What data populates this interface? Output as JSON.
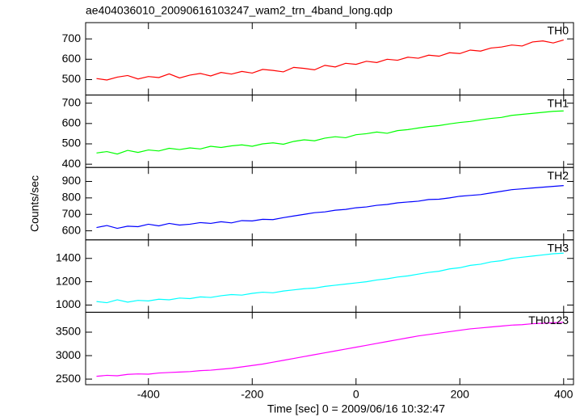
{
  "chart_data": {
    "type": "line",
    "title": "ae404036010_20090616103247_wam2_trn_4band_long.qdp",
    "xlabel": "Time [sec] 0 = 2009/06/16 10:32:47",
    "ylabel": "Counts/sec",
    "x": [
      -500,
      -480,
      -460,
      -440,
      -420,
      -400,
      -380,
      -360,
      -340,
      -320,
      -300,
      -280,
      -260,
      -240,
      -220,
      -200,
      -180,
      -160,
      -140,
      -120,
      -100,
      -80,
      -60,
      -40,
      -20,
      0,
      20,
      40,
      60,
      80,
      100,
      120,
      140,
      160,
      180,
      200,
      220,
      240,
      260,
      280,
      300,
      320,
      340,
      360,
      380,
      400
    ],
    "xlim": [
      -521,
      419
    ],
    "xticks": [
      -400,
      -200,
      0,
      200,
      400
    ],
    "series": [
      {
        "name": "TH0",
        "color": "#ff0000",
        "ylim": [
          424,
          780
        ],
        "yticks": [
          500,
          600,
          700
        ],
        "values": [
          505,
          498,
          512,
          520,
          503,
          515,
          510,
          528,
          508,
          522,
          530,
          518,
          535,
          527,
          540,
          532,
          550,
          545,
          538,
          560,
          555,
          548,
          570,
          562,
          580,
          575,
          590,
          584,
          600,
          595,
          610,
          605,
          620,
          615,
          632,
          628,
          645,
          640,
          655,
          660,
          670,
          665,
          685,
          690,
          680,
          695
        ]
      },
      {
        "name": "TH1",
        "color": "#00ff00",
        "ylim": [
          384,
          740
        ],
        "yticks": [
          400,
          500,
          600,
          700
        ],
        "values": [
          455,
          462,
          450,
          468,
          458,
          470,
          465,
          478,
          472,
          480,
          475,
          488,
          482,
          490,
          495,
          488,
          500,
          505,
          498,
          512,
          520,
          515,
          528,
          535,
          530,
          545,
          550,
          558,
          552,
          565,
          570,
          578,
          585,
          590,
          598,
          605,
          610,
          618,
          625,
          630,
          640,
          645,
          650,
          655,
          660,
          662
        ]
      },
      {
        "name": "TH2",
        "color": "#0000ff",
        "ylim": [
          545,
          985
        ],
        "yticks": [
          600,
          700,
          800,
          900
        ],
        "values": [
          620,
          632,
          615,
          628,
          625,
          640,
          630,
          645,
          635,
          640,
          650,
          645,
          655,
          648,
          662,
          660,
          670,
          668,
          680,
          690,
          700,
          710,
          715,
          725,
          730,
          740,
          745,
          755,
          760,
          770,
          775,
          780,
          790,
          792,
          800,
          810,
          815,
          820,
          830,
          840,
          850,
          855,
          860,
          865,
          870,
          875
        ]
      },
      {
        "name": "TH3",
        "color": "#00ffff",
        "ylim": [
          938,
          1559
        ],
        "yticks": [
          1000,
          1200,
          1400
        ],
        "values": [
          1030,
          1020,
          1045,
          1025,
          1040,
          1035,
          1050,
          1045,
          1060,
          1055,
          1070,
          1065,
          1080,
          1090,
          1085,
          1100,
          1110,
          1105,
          1120,
          1130,
          1140,
          1145,
          1160,
          1170,
          1180,
          1190,
          1200,
          1215,
          1225,
          1240,
          1250,
          1265,
          1280,
          1290,
          1310,
          1320,
          1340,
          1350,
          1370,
          1380,
          1400,
          1410,
          1420,
          1430,
          1440,
          1445
        ]
      },
      {
        "name": "TH0123",
        "color": "#ff00ff",
        "ylim": [
          2381,
          3924
        ],
        "yticks": [
          2500,
          3000,
          3500
        ],
        "values": [
          2560,
          2580,
          2570,
          2600,
          2610,
          2605,
          2630,
          2640,
          2650,
          2660,
          2680,
          2690,
          2710,
          2730,
          2760,
          2790,
          2820,
          2860,
          2900,
          2940,
          2980,
          3020,
          3060,
          3100,
          3140,
          3180,
          3220,
          3260,
          3300,
          3340,
          3380,
          3420,
          3450,
          3480,
          3510,
          3540,
          3570,
          3590,
          3610,
          3630,
          3650,
          3660,
          3680,
          3690,
          3700,
          3710
        ]
      }
    ]
  }
}
